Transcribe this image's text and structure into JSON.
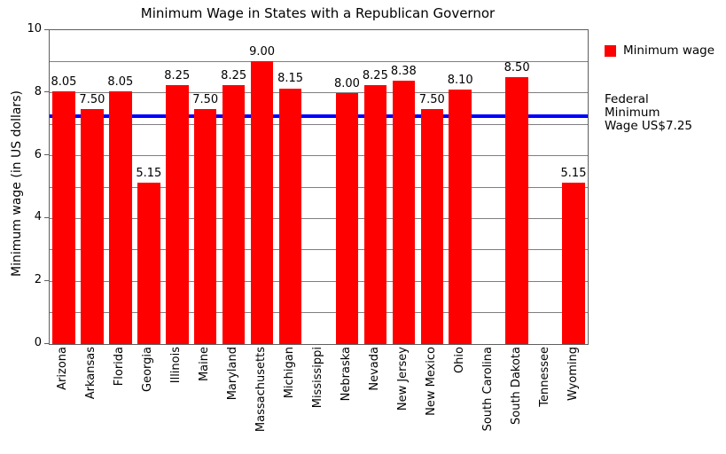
{
  "chart_data": {
    "type": "bar",
    "title": "Minimum Wage in States with a Republican Governor",
    "xlabel": "",
    "ylabel": "Minimum wage (in US dollars)",
    "categories": [
      "Arizona",
      "Arkansas",
      "Florida",
      "Georgia",
      "Illinois",
      "Maine",
      "Maryland",
      "Massachusetts",
      "Michigan",
      "Mississippi",
      "Nebraska",
      "Nevada",
      "New Jersey",
      "New Mexico",
      "Ohio",
      "South Carolina",
      "South Dakota",
      "Tennessee",
      "Wyoming"
    ],
    "values": [
      8.05,
      7.5,
      8.05,
      5.15,
      8.25,
      7.5,
      8.25,
      9.0,
      8.15,
      0,
      8.0,
      8.25,
      8.38,
      7.5,
      8.1,
      0,
      8.5,
      0,
      5.15
    ],
    "bar_labels": [
      "8.05",
      "7.50",
      "8.05",
      "5.15",
      "8.25",
      "7.50",
      "8.25",
      "9.00",
      "8.15",
      "",
      "8.00",
      "8.25",
      "8.38",
      "7.50",
      "8.10",
      "",
      "8.50",
      "",
      "5.15"
    ],
    "bar_color": "#ff0000",
    "ylim": [
      0,
      10
    ],
    "yticks": [
      0,
      2,
      4,
      6,
      8,
      10
    ],
    "grid": true,
    "gridline_interval": 1,
    "legend": {
      "label": "Minimum wage",
      "swatch_color": "#ff0000",
      "position": "outside-upper-right"
    },
    "reference_line": {
      "value": 7.25,
      "color": "#0000ff",
      "label": "Federal\nMinimum\nWage US$7.25"
    }
  }
}
